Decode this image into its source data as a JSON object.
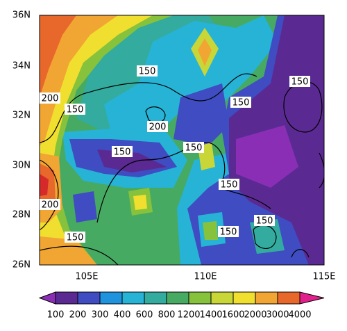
{
  "map": {
    "lat_labels": [
      "36N",
      "34N",
      "32N",
      "30N",
      "28N",
      "26N"
    ],
    "lon_labels": [
      "105E",
      "110E",
      "115E"
    ],
    "contour_labels": [
      "150",
      "200",
      "150",
      "150",
      "150",
      "200",
      "150",
      "150",
      "150",
      "200",
      "150",
      "150",
      "150"
    ],
    "colorbar": {
      "labels": [
        100,
        200,
        300,
        400,
        600,
        800,
        1200,
        1400,
        1600,
        2000,
        3000,
        4000
      ],
      "colors": [
        "#8a2fb5",
        "#5a2a92",
        "#3f4cc2",
        "#1f93de",
        "#27b3d6",
        "#33ab9e",
        "#47aa62",
        "#86c23c",
        "#c9d637",
        "#f1df2f",
        "#f1a533",
        "#e8672b",
        "#d42a2a",
        "#e2208c"
      ]
    }
  }
}
